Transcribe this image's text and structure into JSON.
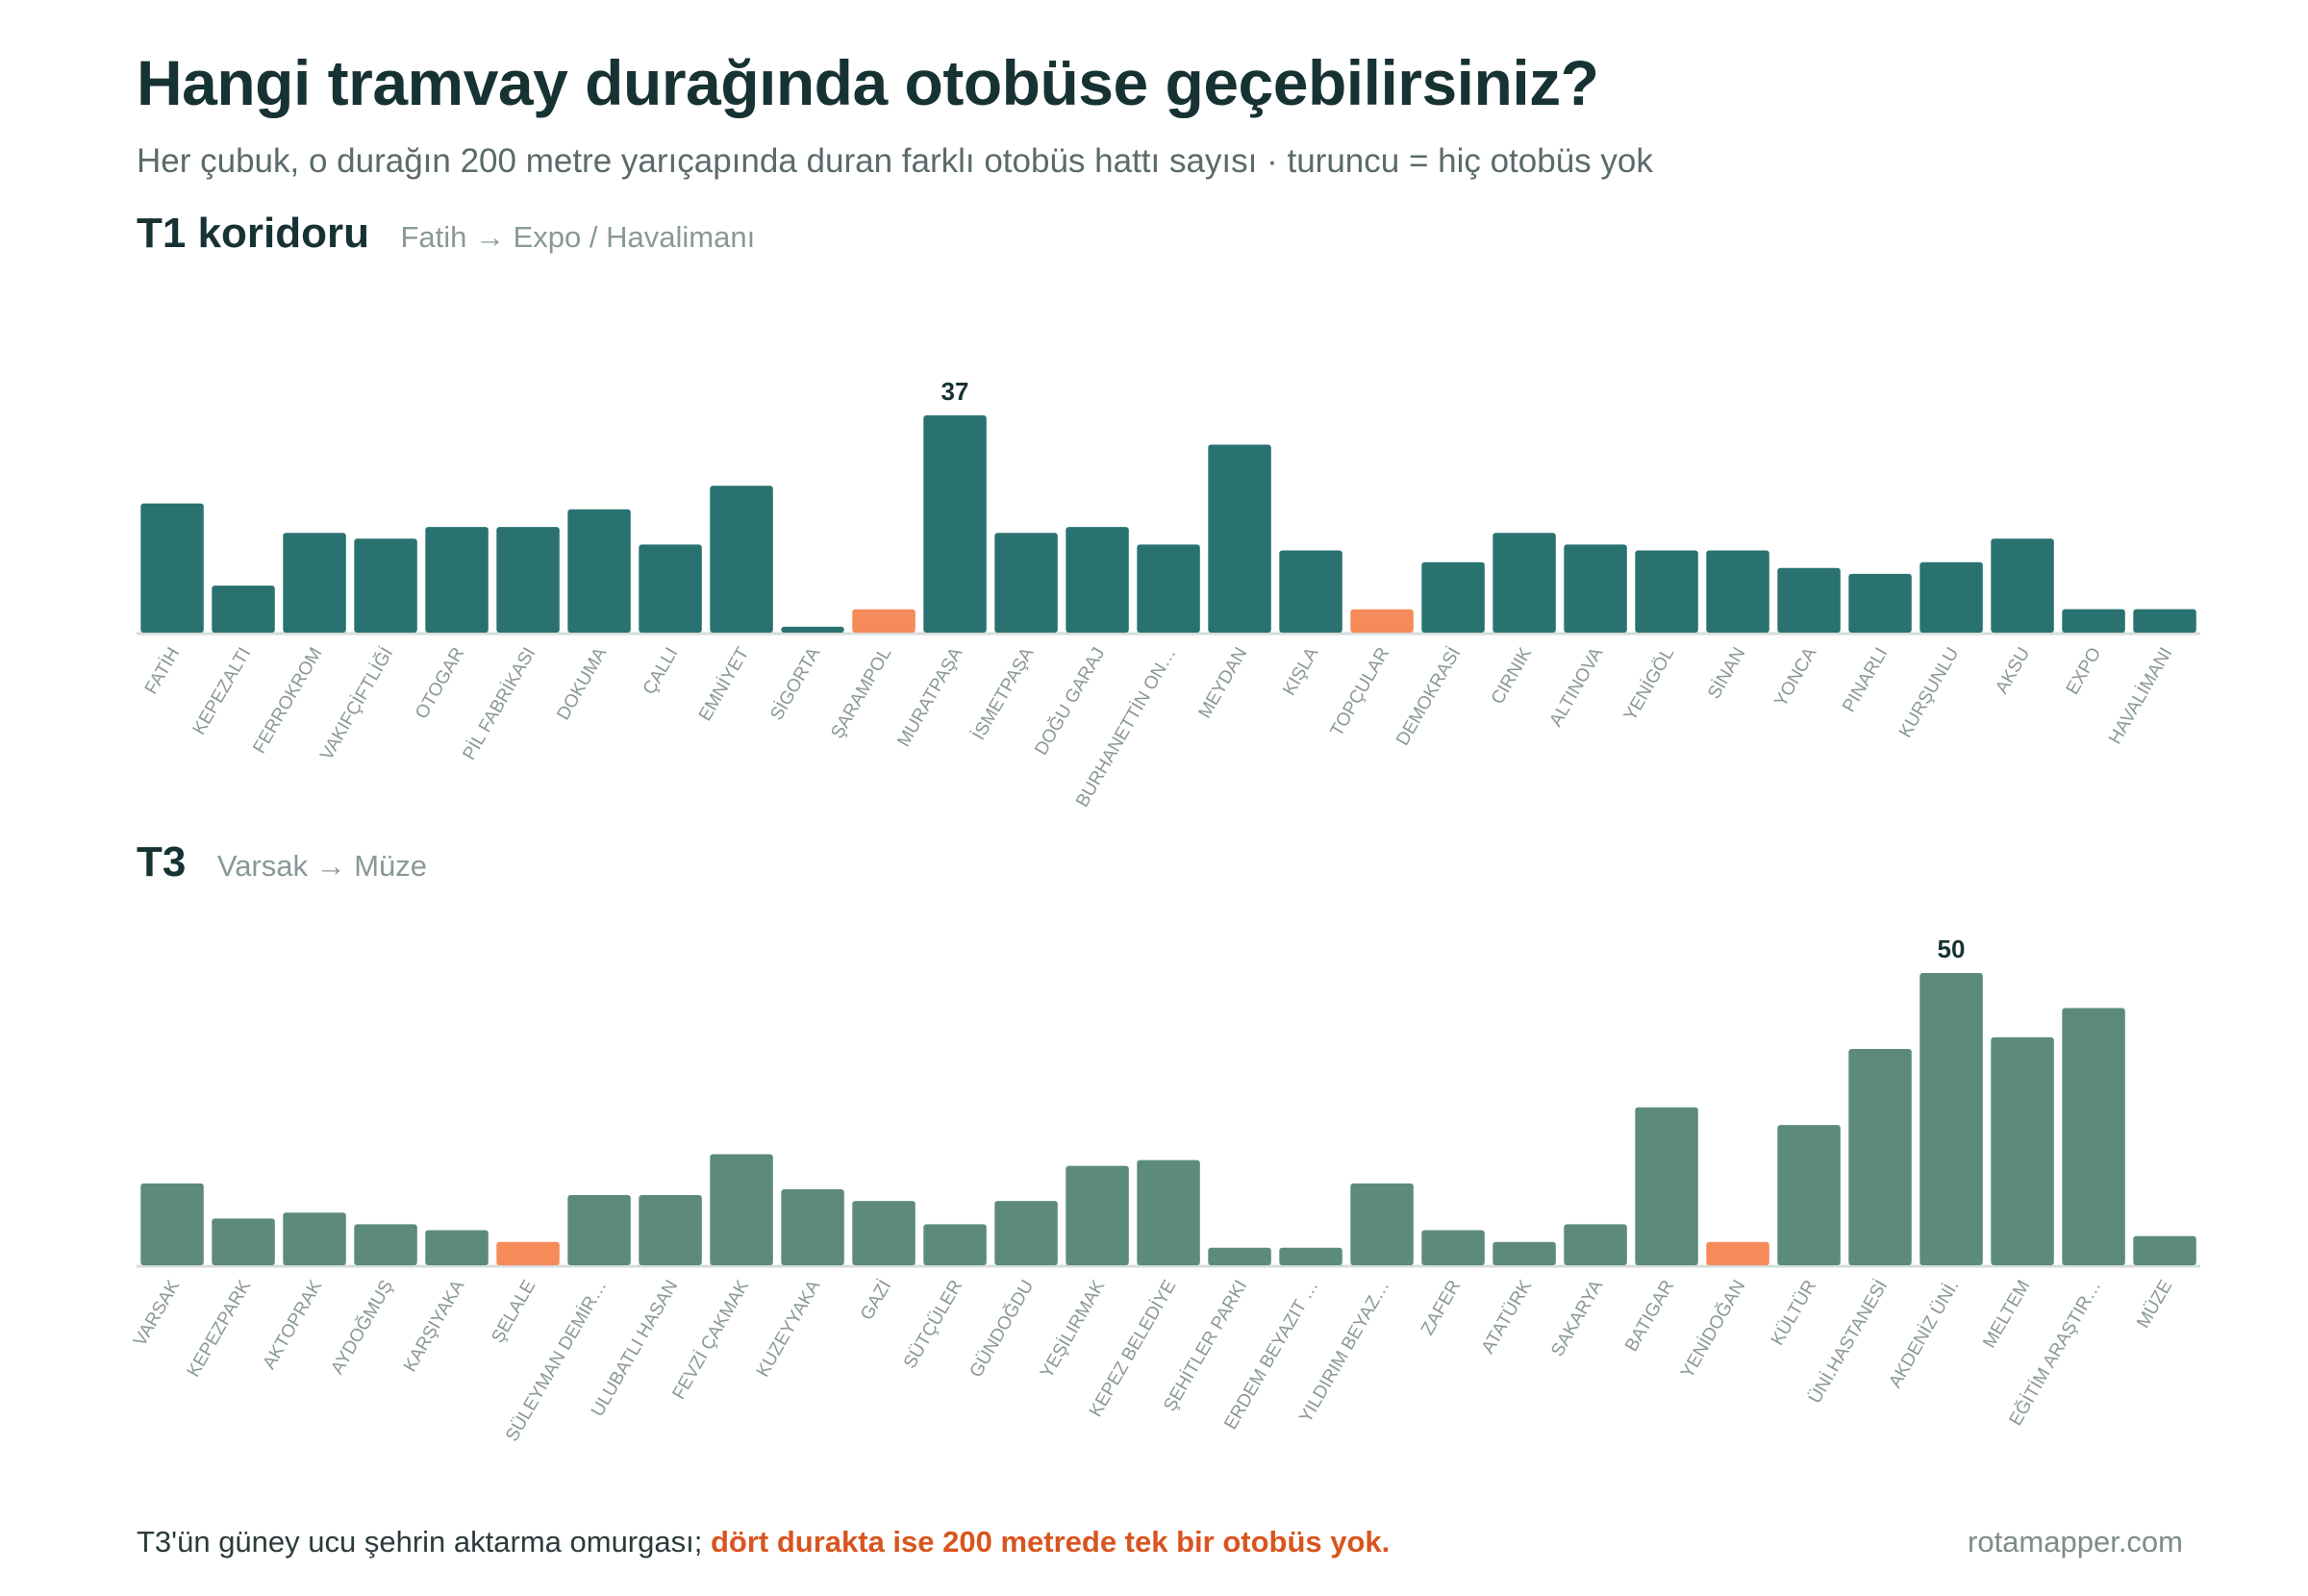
{
  "title": "Hangi tramvay durağında otobüse geçebilirsiniz?",
  "subtitle": "Her çubuk, o durağın 200 metre yarıçapında duran farklı otobüs hattı sayısı · turuncu = hiç otobüs yok",
  "sections": [
    {
      "title": "T1 koridoru",
      "route": "Fatih → Expo / Havalimanı"
    },
    {
      "title": "T3",
      "route": "Varsak → Müze"
    }
  ],
  "footer": {
    "note_plain": "T3'ün güney ucu şehrin aktarma omurgası; ",
    "note_highlight": "dört durakta ise 200 metrede tek bir otobüs yok.",
    "brand": "rotamapper.com"
  },
  "colors": {
    "t1_bar": "#2a7270",
    "t3_bar": "#5c8b7e",
    "zero_bar": "#f58a5a",
    "baseline": "#d6dcdc",
    "label": "#8a9898",
    "value_label": "#173233"
  },
  "chart_data": [
    {
      "type": "bar",
      "title": "T1 koridoru",
      "subtitle": "Fatih → Expo / Havalimanı",
      "ylim": [
        0,
        37
      ],
      "categories": [
        "FATİH",
        "KEPEZALTI",
        "FERROKROM",
        "VAKIFÇİFTLİĞİ",
        "OTOGAR",
        "PİL FABRİKASI",
        "DOKUMA",
        "ÇALLI",
        "EMNİYET",
        "SİGORTA",
        "ŞARAMPOL",
        "MURATPAŞA",
        "İSMETPAŞA",
        "DOĞU GARAJ",
        "BURHANETTİN ON…",
        "MEYDAN",
        "KIŞLA",
        "TOPÇULAR",
        "DEMOKRASİ",
        "CIRNIK",
        "ALTINOVA",
        "YENİGÖL",
        "SİNAN",
        "YONCA",
        "PINARLI",
        "KURŞUNLU",
        "AKSU",
        "EXPO",
        "HAVALİMANI"
      ],
      "values": [
        22,
        8,
        17,
        16,
        18,
        18,
        21,
        15,
        25,
        1,
        0,
        37,
        17,
        18,
        15,
        32,
        14,
        0,
        12,
        17,
        15,
        14,
        14,
        11,
        10,
        12,
        16,
        4,
        4
      ],
      "zero_marker": 3,
      "annotation": {
        "index": 11,
        "text": "37"
      }
    },
    {
      "type": "bar",
      "title": "T3",
      "subtitle": "Varsak → Müze",
      "ylim": [
        0,
        50
      ],
      "categories": [
        "VARSAK",
        "KEPEZPARK",
        "AKTOPRAK",
        "AYDOĞMUŞ",
        "KARŞIYAKA",
        "ŞELALE",
        "SÜLEYMAN DEMİR…",
        "ULUBATLI HASAN",
        "FEVZİ ÇAKMAK",
        "KUZEYYAKA",
        "GAZİ",
        "SÜTÇÜLER",
        "GÜNDOĞDU",
        "YEŞİLIRMAK",
        "KEPEZ BELEDİYE",
        "ŞEHİTLER PARKI",
        "ERDEM BEYAZIT …",
        "YILDIRIM BEYAZ…",
        "ZAFER",
        "ATATÜRK",
        "SAKARYA",
        "BATIGAR",
        "YENİDOĞAN",
        "KÜLTÜR",
        "ÜNİ.HASTANESİ",
        "AKDENİZ ÜNİ.",
        "MELTEM",
        "EĞİTİM ARAŞTIR…",
        "MÜZE"
      ],
      "values": [
        14,
        8,
        9,
        7,
        6,
        0,
        12,
        12,
        19,
        13,
        11,
        7,
        11,
        17,
        18,
        3,
        3,
        14,
        6,
        4,
        7,
        27,
        0,
        24,
        37,
        50,
        39,
        44,
        5
      ],
      "zero_marker": 3,
      "annotation": {
        "index": 25,
        "text": "50"
      }
    }
  ]
}
